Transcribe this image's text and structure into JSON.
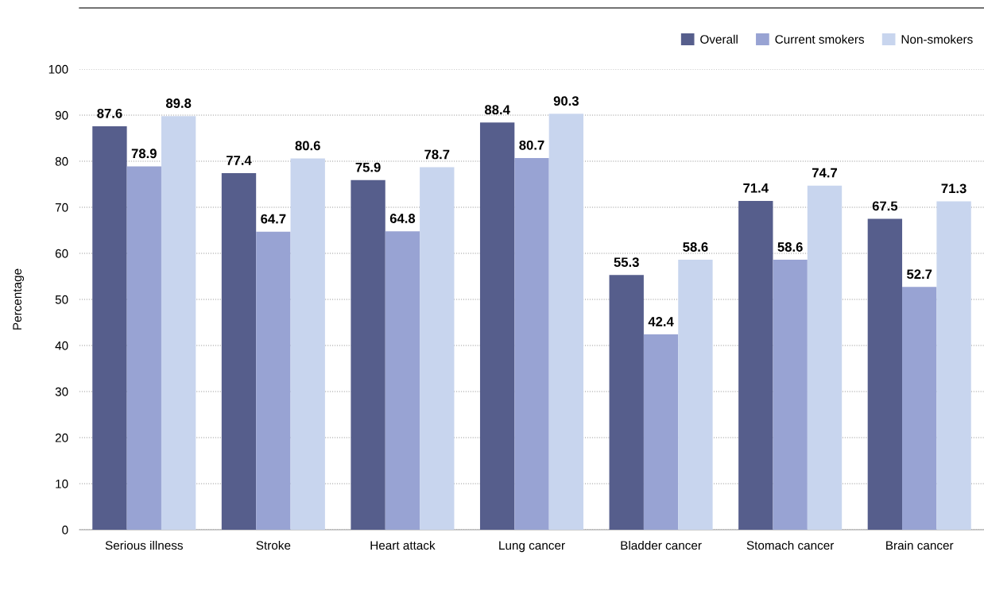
{
  "chart_data": {
    "type": "bar",
    "ylabel": "Percentage",
    "categories": [
      "Serious illness",
      "Stroke",
      "Heart attack",
      "Lung cancer",
      "Bladder cancer",
      "Stomach cancer",
      "Brain cancer"
    ],
    "series": [
      {
        "name": "Overall",
        "color": "#565e8c",
        "values": [
          87.6,
          77.4,
          75.9,
          88.4,
          55.3,
          71.4,
          67.5
        ]
      },
      {
        "name": "Current smokers",
        "color": "#98a3d3",
        "values": [
          78.9,
          64.7,
          64.8,
          80.7,
          42.4,
          58.6,
          52.7
        ]
      },
      {
        "name": "Non-smokers",
        "color": "#c8d5ee",
        "values": [
          89.8,
          80.6,
          78.7,
          90.3,
          58.6,
          74.7,
          71.3
        ]
      }
    ],
    "ylim": [
      0,
      100
    ],
    "yticks": [
      0,
      10,
      20,
      30,
      40,
      50,
      60,
      70,
      80,
      90,
      100
    ],
    "grid": "y",
    "legend": "top right",
    "data_labels": true
  }
}
